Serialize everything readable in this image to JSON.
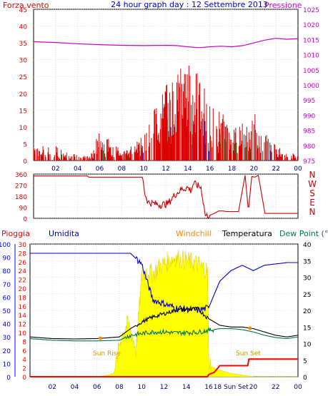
{
  "header": {
    "left_label": "Forza vento",
    "title": "24 hour graph day : 12 Settembre 2013",
    "right_label": "Pressione"
  },
  "colors": {
    "wind": "#dd0000",
    "gust_green": "#007700",
    "gust_blue": "#0000cc",
    "pressure": "#cc00cc",
    "direction": "#cc0000",
    "rain": "#ff0000",
    "humidity": "#0000cc",
    "windchill": "#ff8800",
    "temperature": "#000000",
    "dewpoint": "#007744",
    "sun": "#ffff00",
    "sun_text": "#cc9900",
    "axis_blue": "#0000ff"
  },
  "chart_data": [
    {
      "type": "line",
      "name": "wind-pressure",
      "left_axis": {
        "label": "Forza vento",
        "ticks": [
          0,
          5,
          10,
          15,
          20,
          25,
          30,
          35,
          40,
          45
        ],
        "ylim": [
          0,
          45
        ]
      },
      "right_axis": {
        "label": "Pressione",
        "ticks": [
          975,
          980,
          985,
          990,
          995,
          1000,
          1005,
          1010,
          1015,
          1020,
          1025
        ],
        "ylim": [
          975,
          1025
        ]
      },
      "x_ticks": [
        "02",
        "04",
        "06",
        "08",
        "10",
        "12",
        "14",
        "16",
        "18",
        "20",
        "22",
        "00"
      ],
      "pressure": {
        "x": [
          0,
          2,
          4,
          6,
          8,
          10,
          12,
          13,
          14,
          15,
          16,
          17,
          18,
          19,
          20,
          21,
          22,
          23,
          24
        ],
        "values": [
          1014.3,
          1014.0,
          1013.6,
          1013.3,
          1013.1,
          1013.0,
          1013.1,
          1013.0,
          1012.6,
          1012.3,
          1012.6,
          1012.8,
          1012.6,
          1013.0,
          1013.9,
          1014.8,
          1015.4,
          1015.1,
          1015.3
        ]
      },
      "wind_profile": {
        "x": [
          0,
          1,
          2,
          3,
          4,
          5,
          6,
          7,
          8,
          9,
          10,
          11,
          12,
          13,
          14,
          15,
          16,
          17,
          18,
          19,
          20,
          21,
          22,
          23,
          24
        ],
        "values": [
          4,
          3,
          3,
          2,
          1,
          1,
          6,
          4,
          2,
          3,
          5,
          12,
          15,
          18,
          20,
          17,
          13,
          10,
          6,
          8,
          10,
          6,
          3,
          2,
          1
        ]
      }
    },
    {
      "type": "line",
      "name": "wind-direction",
      "left_axis": {
        "ticks": [
          0,
          90,
          180,
          270,
          360
        ],
        "ylim": [
          0,
          360
        ]
      },
      "right_labels": [
        "N",
        "W",
        "S",
        "E",
        "N"
      ],
      "x": [
        0,
        0.5,
        4.9,
        5.0,
        6.8,
        9.9,
        10.1,
        10.4,
        11.5,
        12.2,
        12.8,
        13.5,
        14.0,
        14.3,
        14.5,
        14.8,
        15.2,
        15.6,
        16.0,
        16.4,
        16.8,
        17.2,
        17.5,
        18.0,
        18.6,
        19.2,
        19.5,
        19.8,
        20.1,
        20.4,
        21.0,
        21.5,
        22.0,
        23.0,
        24.0
      ],
      "values": [
        345,
        345,
        345,
        335,
        335,
        335,
        200,
        130,
        110,
        120,
        190,
        240,
        250,
        225,
        285,
        270,
        250,
        20,
        25,
        40,
        60,
        60,
        55,
        55,
        55,
        350,
        60,
        340,
        335,
        350,
        40,
        40,
        40,
        40,
        40
      ]
    },
    {
      "type": "line",
      "name": "temp-humidity",
      "left_labels": [
        "Pioggia",
        "Umidita"
      ],
      "right_labels": [
        "Windchill",
        "Temperatura",
        "Dew Point (°C"
      ],
      "humidity_axis": {
        "ticks": [
          0,
          10,
          20,
          30,
          40,
          50,
          60,
          70,
          80,
          90,
          100
        ],
        "ylim": [
          0,
          100
        ]
      },
      "rain_axis": {
        "ticks": [
          0,
          2,
          4,
          6,
          8,
          10,
          12,
          14,
          16,
          18,
          20,
          22,
          24,
          26,
          28,
          30
        ],
        "ylim": [
          0,
          30
        ]
      },
      "temp_axis": {
        "ticks": [
          0,
          5,
          10,
          15,
          20,
          25,
          30,
          35,
          40
        ],
        "ylim": [
          0,
          40
        ]
      },
      "x_ticks": [
        "02",
        "04",
        "06",
        "08",
        "10",
        "12",
        "14",
        "16",
        "18 Sun Set",
        "20",
        "22",
        "00"
      ],
      "annotations": {
        "sunrise": "Sun Rise",
        "sunset": "Sun Set"
      },
      "humidity": {
        "x": [
          0,
          4,
          6,
          8,
          9,
          10,
          11,
          12,
          13,
          14,
          15,
          16,
          17,
          18,
          19,
          20,
          21,
          22,
          23,
          24
        ],
        "values": [
          93,
          93,
          93,
          93,
          93,
          85,
          58,
          55,
          52,
          51,
          50,
          52,
          72,
          80,
          84,
          80,
          84,
          85,
          86,
          86
        ]
      },
      "temperature": {
        "x": [
          0,
          2,
          4,
          6,
          8,
          9,
          10,
          11,
          12,
          13,
          14,
          15,
          16,
          17,
          18,
          19,
          20,
          21,
          22,
          23,
          24
        ],
        "values": [
          12,
          11.5,
          11.4,
          11.5,
          12,
          14.5,
          16.5,
          18,
          19,
          20,
          20.3,
          20.5,
          17.5,
          15.5,
          15,
          15,
          14.5,
          13.5,
          12.5,
          12,
          12.5
        ]
      },
      "dewpoint": {
        "x": [
          0,
          2,
          4,
          6,
          8,
          9,
          10,
          11,
          12,
          13,
          14,
          15,
          16,
          17,
          18,
          19,
          20,
          21,
          22,
          23,
          24
        ],
        "values": [
          11.5,
          11,
          10.8,
          10.8,
          11,
          12.5,
          13,
          13.5,
          13.5,
          13.2,
          13.3,
          13.4,
          14,
          14.5,
          14.5,
          14.2,
          13.5,
          12.5,
          11.8,
          11.5,
          12
        ]
      },
      "rain_cumulative": {
        "x": [
          0,
          15.9,
          16.0,
          16.5,
          17.0,
          19.5,
          19.6,
          23.0,
          24.0
        ],
        "values": [
          0,
          0,
          0.5,
          1,
          2.5,
          2.5,
          4,
          4,
          4
        ]
      },
      "sun_radiation": {
        "x": [
          0,
          6,
          7,
          7.5,
          7.8,
          8,
          8.4,
          8.8,
          9.2,
          9.5,
          10,
          10.5,
          11,
          11.5,
          12,
          13,
          14,
          15,
          15.9,
          16,
          16.3,
          17,
          18,
          19,
          20,
          24
        ],
        "values": [
          0,
          0,
          0.5,
          1,
          5,
          10,
          14,
          16,
          12,
          8,
          30,
          32,
          31,
          33,
          34,
          36,
          35,
          34,
          32,
          5,
          3,
          2,
          1,
          0.5,
          0,
          0
        ]
      }
    }
  ]
}
